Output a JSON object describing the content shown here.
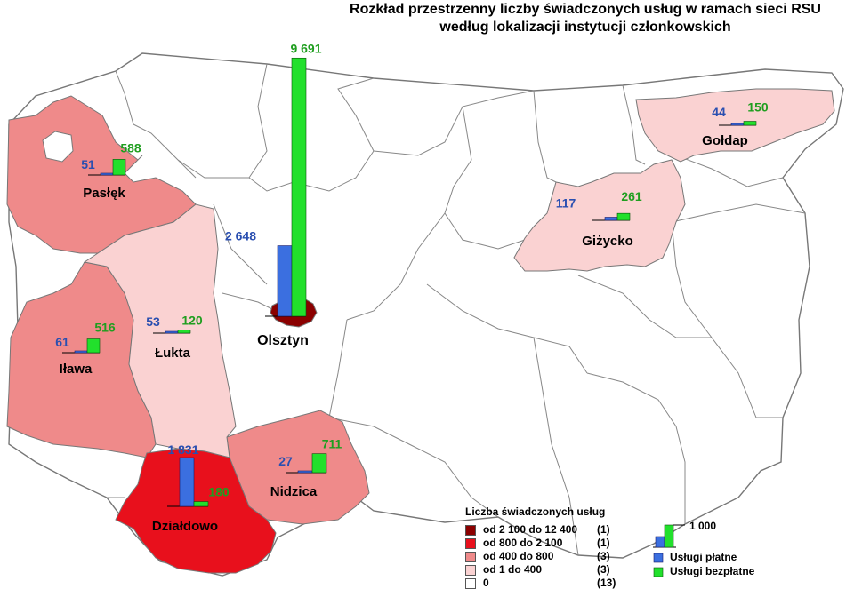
{
  "title": {
    "line1": "Rozkład przestrzenny liczby świadczonych usług w ramach sieci RSU",
    "line2": "według lokalizacji instytucji członkowskich"
  },
  "colors": {
    "paid": "#3b6fe0",
    "free": "#22e02c",
    "class1": "#8b0000",
    "class2": "#e8101c",
    "class3": "#ef8a8a",
    "class4": "#fad2d2",
    "class5": "#ffffff",
    "paid_label": "#2a4fb0",
    "free_label": "#1f9e1f"
  },
  "regions": [
    {
      "name": "Olsztyn",
      "paid_label": "2 648",
      "free_label": "9 691",
      "paid": 2648,
      "free": 9691
    },
    {
      "name": "Działdowo",
      "paid_label": "1 831",
      "free_label": "180",
      "paid": 1831,
      "free": 180
    },
    {
      "name": "Nidzica",
      "paid_label": "27",
      "free_label": "711",
      "paid": 27,
      "free": 711
    },
    {
      "name": "Iława",
      "paid_label": "61",
      "free_label": "516",
      "paid": 61,
      "free": 516
    },
    {
      "name": "Łukta",
      "paid_label": "53",
      "free_label": "120",
      "paid": 53,
      "free": 120
    },
    {
      "name": "Pasłęk",
      "paid_label": "51",
      "free_label": "588",
      "paid": 51,
      "free": 588
    },
    {
      "name": "Giżycko",
      "paid_label": "117",
      "free_label": "261",
      "paid": 117,
      "free": 261
    },
    {
      "name": "Gołdap",
      "paid_label": "44",
      "free_label": "150",
      "paid": 44,
      "free": 150
    }
  ],
  "legend": {
    "title": "Liczba świadczonych usług",
    "classes": [
      {
        "label": "od 2 100 do 12 400",
        "count": "(1)"
      },
      {
        "label": "od 800 do 2 100",
        "count": "(1)"
      },
      {
        "label": "od 400 do 800",
        "count": "(3)"
      },
      {
        "label": "od 1 do 400",
        "count": "(3)"
      },
      {
        "label": "0",
        "count": "(13)"
      }
    ],
    "scale_label": "1 000",
    "paid_label": "Usługi płatne",
    "free_label": "Usługi bezpłatne"
  }
}
